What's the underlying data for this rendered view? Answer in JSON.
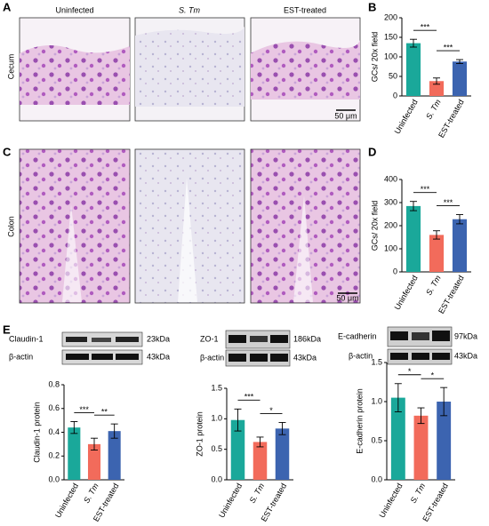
{
  "figure": {
    "panel_letters": [
      "A",
      "B",
      "C",
      "D",
      "E"
    ],
    "image_columns": [
      "Uninfected",
      "S. Tm",
      "EST-treated"
    ],
    "image_rows": [
      "Cecum",
      "Colon"
    ],
    "scale_bars": [
      "50 μm",
      "50 μm"
    ],
    "blots": [
      {
        "protein": "Claudin-1",
        "protein_size": "23kDa",
        "control": "β-actin",
        "control_size": "43kDa"
      },
      {
        "protein": "ZO-1",
        "protein_size": "186kDa",
        "control": "β-actin",
        "control_size": "43kDa"
      },
      {
        "protein": "E-cadherin",
        "protein_size": "97kDa",
        "control": "β-actin",
        "control_size": "43kDa"
      }
    ]
  },
  "chart_data": [
    {
      "type": "bar",
      "y_label": "GCs/ 20x field",
      "categories": [
        "Uninfected",
        "S. Tm",
        "EST-treated"
      ],
      "values": [
        135,
        38,
        88
      ],
      "errors": [
        10,
        8,
        5
      ],
      "colors": [
        "#1aa89a",
        "#f26b5b",
        "#3c64b0"
      ],
      "ylim": [
        0,
        200
      ],
      "yticks": [
        0,
        50,
        100,
        150,
        200
      ],
      "annotations": [
        "***",
        "***"
      ]
    },
    {
      "type": "bar",
      "y_label": "GCs/ 20x field",
      "categories": [
        "Uninfected",
        "S. Tm",
        "EST-treated"
      ],
      "values": [
        285,
        160,
        228
      ],
      "errors": [
        20,
        18,
        20
      ],
      "colors": [
        "#1aa89a",
        "#f26b5b",
        "#3c64b0"
      ],
      "ylim": [
        0,
        400
      ],
      "yticks": [
        0,
        100,
        200,
        300,
        400
      ],
      "annotations": [
        "***",
        "***"
      ]
    },
    {
      "type": "bar",
      "y_label": "Claudin-1 protein",
      "categories": [
        "Uninfected",
        "S. Tm",
        "EST-treated"
      ],
      "values": [
        0.44,
        0.3,
        0.41
      ],
      "errors": [
        0.05,
        0.05,
        0.06
      ],
      "colors": [
        "#1aa89a",
        "#f26b5b",
        "#3c64b0"
      ],
      "ylim": [
        0,
        0.8
      ],
      "yticks": [
        {
          "value": 0,
          "label": "0.0"
        },
        0.2,
        0.4,
        0.6,
        0.8
      ],
      "annotations": [
        "***",
        "**"
      ]
    },
    {
      "type": "bar",
      "y_label": "ZO-1 protein",
      "categories": [
        "Uninfected",
        "S. Tm",
        "EST-treated"
      ],
      "values": [
        0.98,
        0.62,
        0.84
      ],
      "errors": [
        0.18,
        0.08,
        0.1
      ],
      "colors": [
        "#1aa89a",
        "#f26b5b",
        "#3c64b0"
      ],
      "ylim": [
        0,
        1.5
      ],
      "yticks": [
        {
          "value": 0,
          "label": "0.0"
        },
        0.5,
        {
          "value": 1,
          "label": "1.0"
        },
        1.5
      ],
      "annotations": [
        "***",
        "*"
      ]
    },
    {
      "type": "bar",
      "y_label": "E-cadherin protein",
      "categories": [
        "Uninfected",
        "S. Tm",
        "EST-treated"
      ],
      "values": [
        1.05,
        0.82,
        1.0
      ],
      "errors": [
        0.18,
        0.1,
        0.18
      ],
      "colors": [
        "#1aa89a",
        "#f26b5b",
        "#3c64b0"
      ],
      "ylim": [
        0,
        1.5
      ],
      "yticks": [
        {
          "value": 0,
          "label": "0.0"
        },
        0.5,
        {
          "value": 1,
          "label": "1.0"
        },
        1.5
      ],
      "annotations": [
        "*",
        "*"
      ]
    }
  ]
}
